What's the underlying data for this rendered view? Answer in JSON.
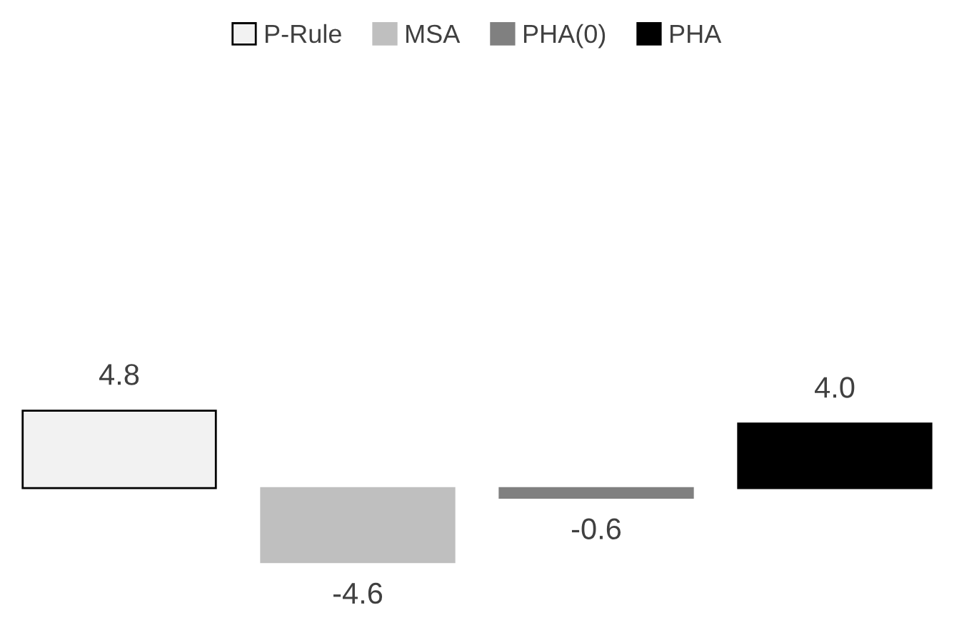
{
  "chart_data": {
    "type": "bar",
    "categories": [
      null
    ],
    "series": [
      {
        "name": "P-Rule",
        "color": "#f2f2f2",
        "values": [
          4.8
        ]
      },
      {
        "name": "MSA",
        "color": "#bfbfbf",
        "values": [
          -4.6
        ]
      },
      {
        "name": "PHA(0)",
        "color": "#808080",
        "values": [
          -0.6
        ]
      },
      {
        "name": "PHA",
        "color": "#000000",
        "values": [
          4.0
        ],
        "value_labels": [
          "4.0"
        ]
      }
    ],
    "data_labels": true,
    "legend": "top"
  }
}
